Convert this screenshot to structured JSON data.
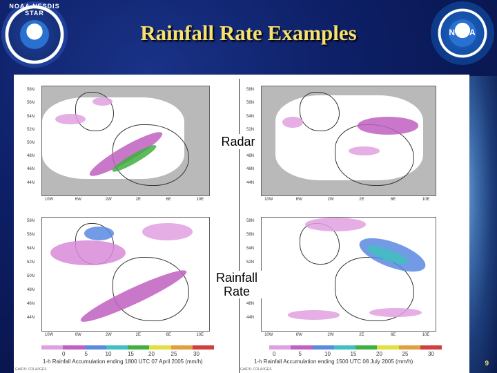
{
  "slide": {
    "title": "Rainfall  Rate Examples",
    "page_number": "9"
  },
  "logos": {
    "nesdis_text": "NOAA NESDIS STAR",
    "noaa_text": "NOAA"
  },
  "labels": {
    "radar": "Radar",
    "rainfall_rate_line1": "Rainfall",
    "rainfall_rate_line2": "Rate"
  },
  "maps": {
    "lat_ticks": [
      "58N",
      "56N",
      "54N",
      "52N",
      "50N",
      "48N",
      "46N",
      "44N",
      "42N"
    ],
    "lat_ticks_short": [
      "58N",
      "56N",
      "54N",
      "52N",
      "50N",
      "48N",
      "46N",
      "44N",
      "42N"
    ],
    "lon_ticks": [
      "10W",
      "8W",
      "6W",
      "4W",
      "2W",
      "0",
      "2E",
      "4E",
      "6E",
      "8E",
      "10E",
      "12E"
    ]
  },
  "colorbars": {
    "ticks": [
      "0",
      "5",
      "10",
      "15",
      "20",
      "25",
      "30"
    ],
    "colors": [
      "#e0a0e0",
      "#c060c0",
      "#5a8ae0",
      "#40c0c0",
      "#40b040",
      "#e0e040",
      "#e0a040",
      "#d04040"
    ]
  },
  "captions": {
    "left": "1-h Rainfall Accumulation ending 1800 UTC 07 April 2005 (mm/h)",
    "right": "1-h Rainfall Accumulation ending 1500 UTC 08 July 2005 (mm/h)",
    "credit": "GrADS: COLA/IGES"
  }
}
